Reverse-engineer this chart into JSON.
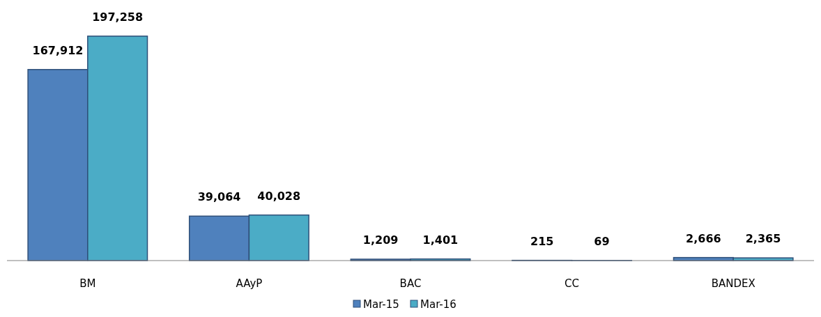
{
  "chart_data": {
    "type": "bar",
    "categories": [
      "BM",
      "AAyP",
      "BAC",
      "CC",
      "BANDEX"
    ],
    "series": [
      {
        "name": "Mar-15",
        "color": "#4f81bd",
        "values": [
          167912,
          39064,
          1209,
          215,
          2666
        ],
        "value_labels": [
          "167,912",
          "39,064",
          "1,209",
          "215",
          "2,666"
        ]
      },
      {
        "name": "Mar-16",
        "color": "#4bacc6",
        "values": [
          197258,
          40028,
          1401,
          69,
          2365
        ],
        "value_labels": [
          "197,258",
          "40,028",
          "1,401",
          "69",
          "2,365"
        ]
      }
    ],
    "legend": "bottom"
  }
}
